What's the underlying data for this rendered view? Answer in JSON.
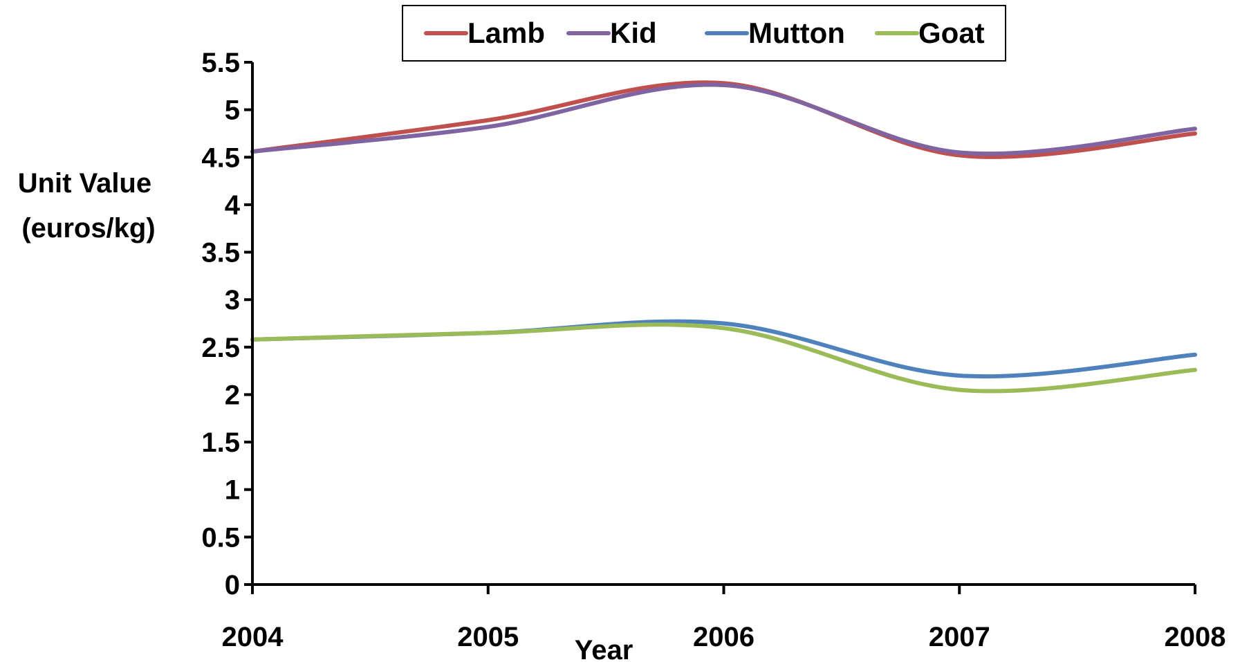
{
  "chart_data": {
    "type": "line",
    "x": [
      "2004",
      "2005",
      "2006",
      "2007",
      "2008"
    ],
    "xlabel": "Year",
    "ylabel_lines": [
      "Unit Value",
      "(euros/kg)"
    ],
    "ylim": [
      0,
      5.5
    ],
    "yticks": [
      "0",
      "0.5",
      "1",
      "1.5",
      "2",
      "2.5",
      "3",
      "3.5",
      "4",
      "4.5",
      "5",
      "5.5"
    ],
    "grid": false,
    "legend_position": "top-center",
    "smooth": true,
    "series": [
      {
        "name": "Lamb",
        "color": "#c0504d",
        "values": [
          4.56,
          4.89,
          5.28,
          4.52,
          4.75
        ]
      },
      {
        "name": "Kid",
        "color": "#8064a2",
        "values": [
          4.56,
          4.82,
          5.26,
          4.55,
          4.8
        ]
      },
      {
        "name": "Mutton",
        "color": "#4f81bd",
        "values": [
          2.58,
          2.65,
          2.75,
          2.2,
          2.42
        ]
      },
      {
        "name": "Goat",
        "color": "#9bbb59",
        "values": [
          2.58,
          2.65,
          2.7,
          2.05,
          2.26
        ]
      }
    ]
  }
}
